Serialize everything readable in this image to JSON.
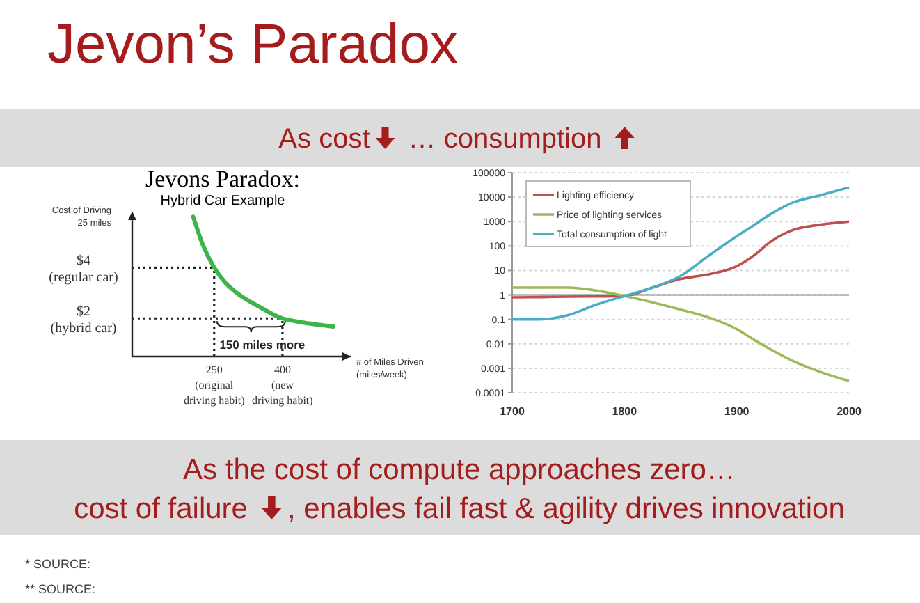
{
  "chart_data": [
    {
      "type": "other",
      "title": "Jevon’s Paradox",
      "annotations": [
        "As cost",
        "… consumption",
        "As the cost of compute approaches zero…",
        "cost of failure",
        ", enables fail fast & agility drives innovation",
        "* SOURCE:",
        "** SOURCE:"
      ]
    },
    {
      "type": "line",
      "title": "Jevons Paradox:",
      "subtitle": "Hybrid Car Example",
      "xlabel": "# of Miles Driven\n(miles/week)",
      "ylabel": "Cost of Driving\n25 miles",
      "xlim": [
        70,
        550
      ],
      "ylim": [
        0.5,
        6.2
      ],
      "xticks": [
        {
          "value": 250,
          "label": "250\n(original\ndriving habit)"
        },
        {
          "value": 400,
          "label": "400\n(new\ndriving habit)"
        }
      ],
      "yticks": [
        {
          "value": 4,
          "label": "$4\n(regular car)"
        },
        {
          "value": 2,
          "label": "$2\n(hybrid car)"
        }
      ],
      "x": [
        204,
        225,
        250,
        275,
        300,
        325,
        350,
        375,
        400,
        425,
        450,
        480,
        512
      ],
      "series": [
        {
          "color": "#3cb44a",
          "values": [
            6.0,
            4.9,
            4.0,
            3.4,
            3.0,
            2.7,
            2.45,
            2.2,
            2.0,
            1.9,
            1.82,
            1.75,
            1.68
          ]
        }
      ],
      "ref_lines": [
        {
          "axis": "x",
          "value": 250,
          "line_style": "dotted",
          "color": "#222222"
        },
        {
          "axis": "x",
          "value": 400,
          "line_style": "dotted",
          "color": "#222222"
        },
        {
          "axis": "y",
          "value": 4,
          "line_style": "dotted",
          "color": "#222222"
        },
        {
          "axis": "y",
          "value": 2,
          "line_style": "dotted",
          "color": "#222222"
        }
      ],
      "annotations": [
        {
          "text": "150 miles more",
          "x": 325,
          "y": 2
        }
      ]
    },
    {
      "type": "line",
      "log": "y",
      "grid": "y",
      "legend": "top left",
      "xlim": [
        1700,
        2000
      ],
      "ylim": [
        0.0001,
        100000
      ],
      "xticks": [
        1700,
        1800,
        1900,
        2000
      ],
      "yticks": [
        100000,
        10000,
        1000,
        100,
        10,
        1,
        0.1,
        0.01,
        0.001,
        0.0001
      ],
      "x": [
        1700,
        1725,
        1750,
        1775,
        1800,
        1825,
        1850,
        1875,
        1900,
        1915,
        1930,
        1950,
        1975,
        2000
      ],
      "ref_lines": [
        {
          "axis": "y",
          "value": 1,
          "color": "#888888"
        }
      ],
      "series": [
        {
          "name": "Lighting efficiency",
          "color": "#c0504d",
          "values": [
            0.8,
            0.82,
            0.85,
            0.87,
            0.9,
            2,
            4.5,
            7,
            15,
            40,
            150,
            450,
            750,
            1000
          ]
        },
        {
          "name": "Price of lighting services",
          "color": "#9bbb59",
          "values": [
            2,
            2,
            2,
            1.5,
            0.9,
            0.5,
            0.25,
            0.12,
            0.04,
            0.015,
            0.006,
            0.002,
            0.0007,
            0.0003
          ]
        },
        {
          "name": "Total consumption of light",
          "color": "#4bacc6",
          "values": [
            0.1,
            0.1,
            0.15,
            0.4,
            0.9,
            2,
            6,
            40,
            250,
            700,
            2000,
            6000,
            12000,
            25000
          ]
        }
      ]
    }
  ]
}
